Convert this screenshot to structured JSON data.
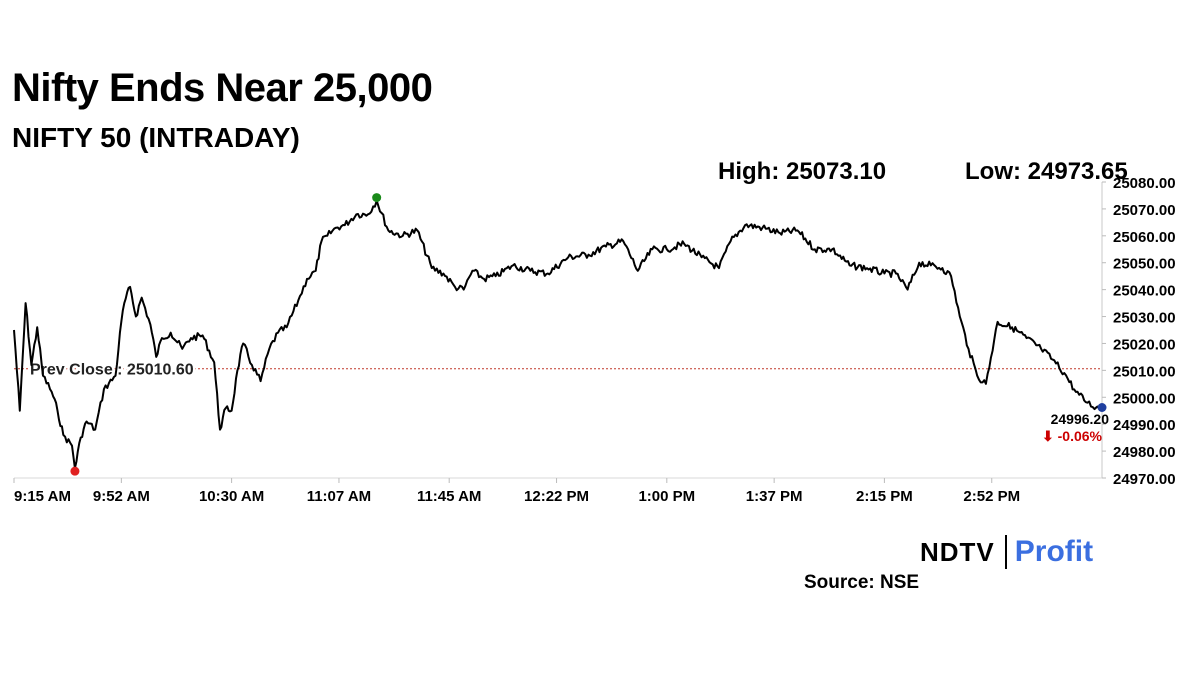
{
  "title": "Nifty Ends Near 25,000",
  "subtitle": "NIFTY 50 (INTRADAY)",
  "stats": {
    "high_text": "High: 25073.10",
    "low_text": "Low: 24973.65"
  },
  "source_text": "Source: NSE",
  "brand": {
    "left": "NDTV",
    "right": "Profit",
    "right_color": "#3b6fe0"
  },
  "colors": {
    "line": "#000000",
    "prev_close": "#c0392b",
    "high_dot": "#1a8a1a",
    "low_dot": "#e02020",
    "last_dot": "#1f3f9f",
    "down": "#cc0000"
  },
  "chart_data": {
    "type": "line",
    "title": "NIFTY 50 (INTRADAY)",
    "ylim": [
      24970,
      25080
    ],
    "x_range": [
      "9:15 AM",
      "3:30 PM"
    ],
    "x_ticks": [
      "9:15 AM",
      "9:52 AM",
      "10:30 AM",
      "11:07 AM",
      "11:45 AM",
      "12:22 PM",
      "1:00 PM",
      "1:37 PM",
      "2:15 PM",
      "2:52 PM"
    ],
    "y_ticks": [
      "24970.00",
      "24980.00",
      "24990.00",
      "25000.00",
      "25010.00",
      "25020.00",
      "25030.00",
      "25040.00",
      "25050.00",
      "25060.00",
      "25070.00",
      "25080.00"
    ],
    "prev_close": 25010.6,
    "prev_close_label": "Prev Close : 25010.60",
    "high": {
      "time": "11:20 AM",
      "value": 25073.1
    },
    "low": {
      "time": "9:36 AM",
      "value": 24973.65
    },
    "last": {
      "time": "3:30 PM",
      "value": 24996.2,
      "label": "24996.20",
      "change_label": "⬇ -0.06%"
    },
    "series": [
      {
        "x": [
          "9:15 AM",
          "9:17 AM",
          "9:19 AM",
          "9:21 AM",
          "9:23 AM",
          "9:25 AM",
          "9:28 AM",
          "9:30 AM",
          "9:32 AM",
          "9:35 AM",
          "9:36 AM",
          "9:38 AM",
          "9:40 AM",
          "9:43 AM",
          "9:46 AM",
          "9:50 AM",
          "9:52 AM",
          "9:53 AM",
          "9:55 AM",
          "9:57 AM",
          "9:59 AM",
          "10:02 AM",
          "10:04 AM",
          "10:06 AM",
          "10:09 AM",
          "10:13 AM",
          "10:16 AM",
          "10:20 AM",
          "10:24 AM",
          "10:26 AM",
          "10:28 AM",
          "10:30 AM",
          "10:32 AM",
          "10:34 AM",
          "10:37 AM",
          "10:40 AM",
          "10:43 AM",
          "10:46 AM",
          "10:49 AM",
          "10:53 AM",
          "10:56 AM",
          "10:59 AM",
          "11:01 AM",
          "11:03 AM",
          "11:06 AM",
          "11:09 AM",
          "11:13 AM",
          "11:17 AM",
          "11:20 AM",
          "11:24 AM",
          "11:29 AM",
          "11:34 AM",
          "11:39 AM",
          "11:43 AM",
          "11:47 AM",
          "11:50 AM",
          "11:53 AM",
          "11:57 AM",
          "12:01 PM",
          "12:07 PM",
          "12:13 PM",
          "12:19 PM",
          "12:26 PM",
          "12:33 PM",
          "12:39 PM",
          "12:45 PM",
          "12:50 PM",
          "12:55 PM",
          "1:00 PM",
          "1:06 PM",
          "1:12 PM",
          "1:18 PM",
          "1:22 PM",
          "1:27 PM",
          "1:33 PM",
          "1:39 PM",
          "1:45 PM",
          "1:51 PM",
          "1:57 PM",
          "2:03 PM",
          "2:09 PM",
          "2:15 PM",
          "2:19 PM",
          "2:23 PM",
          "2:27 PM",
          "2:31 PM",
          "2:35 PM",
          "2:38 PM",
          "2:41 PM",
          "2:44 PM",
          "2:47 PM",
          "2:50 PM",
          "2:54 PM",
          "2:59 PM",
          "3:04 PM",
          "3:09 PM",
          "3:13 PM",
          "3:17 PM",
          "3:21 PM",
          "3:25 PM",
          "3:28 PM",
          "3:30 PM"
        ],
        "y": [
          25025,
          24995,
          25035,
          25012,
          25026,
          25008,
          25002,
          24995,
          24986,
          24982,
          24973.65,
          24985,
          24991,
          24988,
          25003,
          25008,
          25028,
          25035,
          25041,
          25030,
          25037,
          25027,
          25015,
          25022,
          25024,
          25018,
          25022,
          25023,
          25013,
          24988,
          24996,
          24995,
          25010,
          25020,
          25012,
          25006,
          25018,
          25024,
          25026,
          25036,
          25044,
          25047,
          25058,
          25060,
          25063,
          25064,
          25068,
          25068,
          25073.1,
          25062,
          25060,
          25062,
          25048,
          25046,
          25041,
          25040,
          25047,
          25044,
          25045,
          25049,
          25047,
          25046,
          25052,
          25053,
          25056,
          25058,
          25047,
          25055,
          25055,
          25057,
          25052,
          25048,
          25058,
          25064,
          25063,
          25061,
          25062,
          25055,
          25055,
          25049,
          25048,
          25046,
          25046,
          25040,
          25050,
          25049,
          25048,
          25045,
          25030,
          25018,
          25008,
          25005,
          25028,
          25026,
          25022,
          25018,
          25014,
          25009,
          25002,
          24998,
          24996.2,
          24996.2
        ]
      }
    ]
  }
}
